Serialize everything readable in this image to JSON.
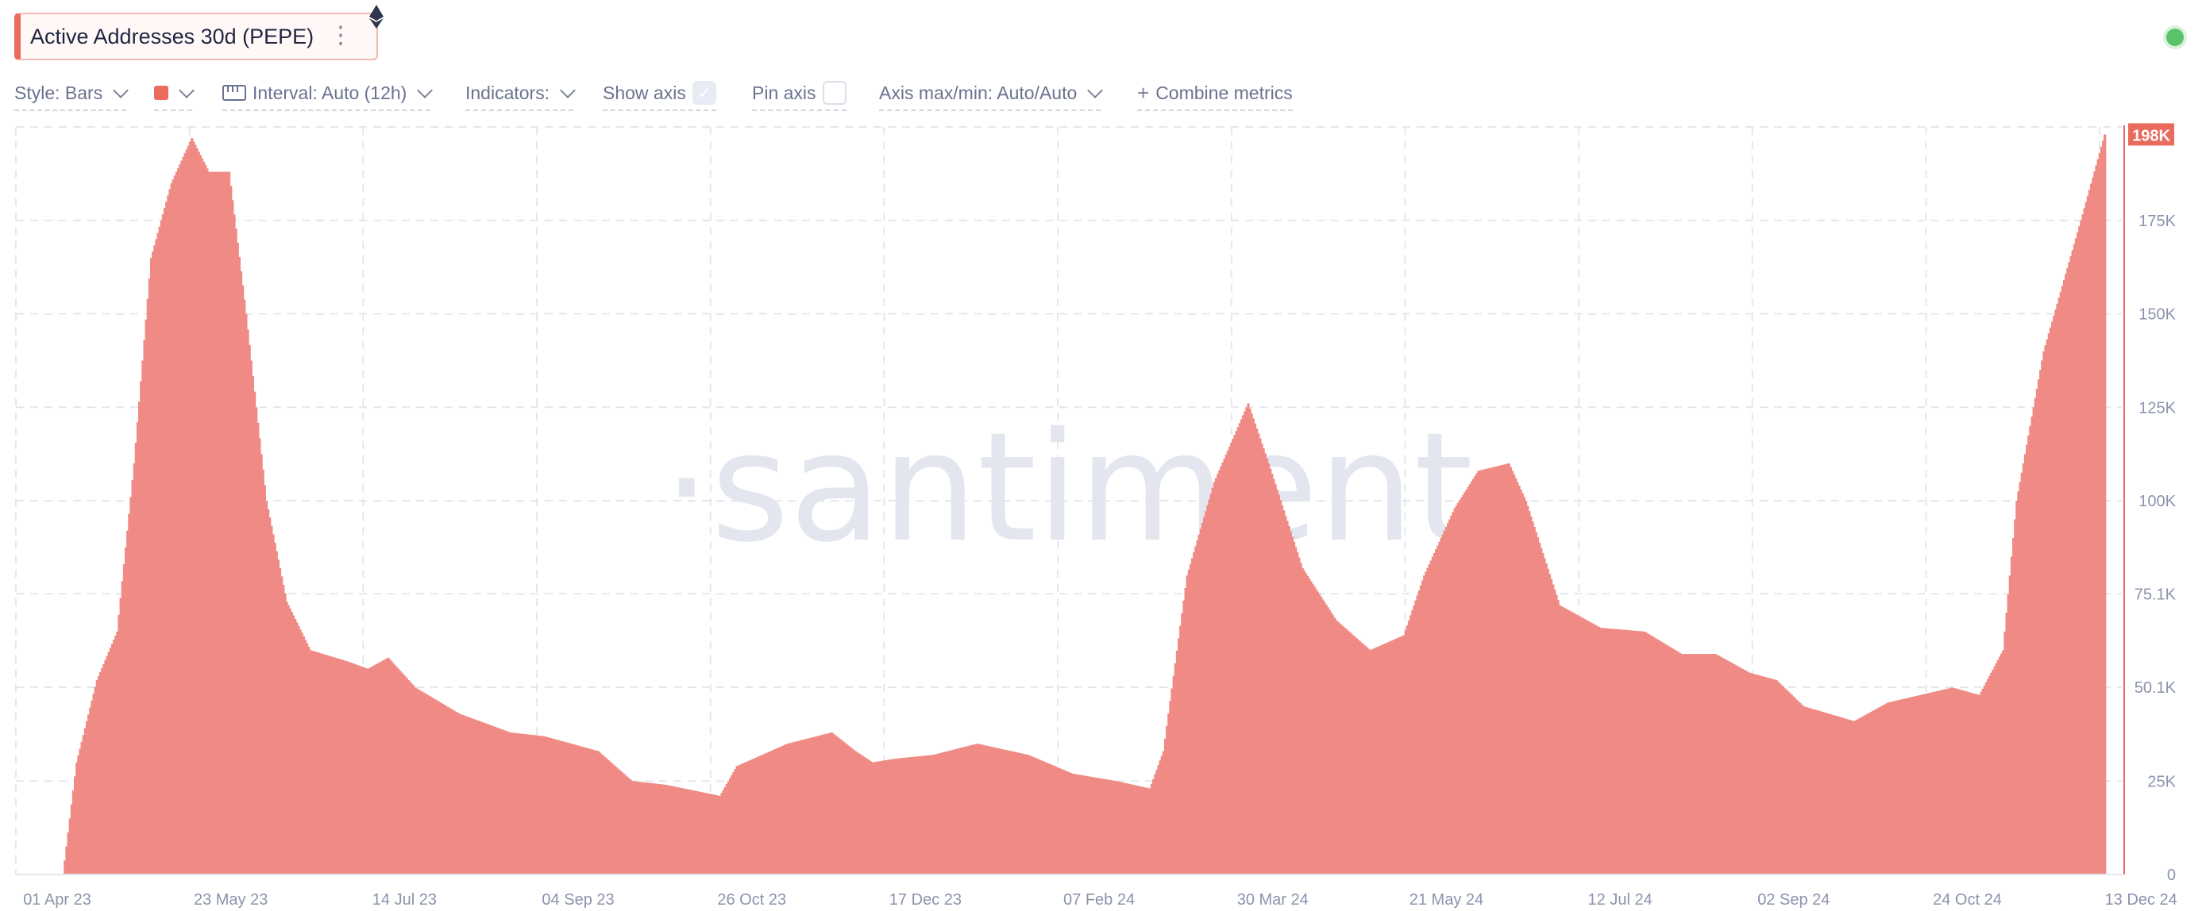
{
  "header": {
    "metric_title": "Active Addresses 30d (PEPE)",
    "menu_icon": "⋮",
    "chain_icon": "ethereum-icon"
  },
  "toolbar": {
    "style": "Style: Bars",
    "interval": "Interval: Auto (12h)",
    "indicators": "Indicators:",
    "show_axis": "Show axis",
    "show_axis_checked": true,
    "pin_axis": "Pin axis",
    "pin_axis_checked": false,
    "axis_maxmin": "Axis max/min: Auto/Auto",
    "combine_plus": "+",
    "combine": "Combine metrics"
  },
  "status": {
    "color": "#5ac26a"
  },
  "chart_data": {
    "type": "bar",
    "watermark": "·santiment·",
    "series_color": "#f08a84",
    "axis_color": "#ea6a5e",
    "current_value_label": "198K",
    "y_ticks": [
      {
        "value": 0,
        "label": "0"
      },
      {
        "value": 25000,
        "label": "25K"
      },
      {
        "value": 50100,
        "label": "50.1K"
      },
      {
        "value": 75100,
        "label": "75.1K"
      },
      {
        "value": 100000,
        "label": "100K"
      },
      {
        "value": 125000,
        "label": "125K"
      },
      {
        "value": 150000,
        "label": "150K"
      },
      {
        "value": 175000,
        "label": "175K"
      }
    ],
    "x_ticks": [
      "01 Apr 23",
      "23 May 23",
      "14 Jul 23",
      "04 Sep 23",
      "26 Oct 23",
      "17 Dec 23",
      "07 Feb 24",
      "30 Mar 24",
      "21 May 24",
      "12 Jul 24",
      "02 Sep 24",
      "24 Oct 24",
      "13 Dec 24"
    ],
    "x_start": "2023-04-01",
    "x_end": "2024-12-13",
    "ylim": [
      0,
      200000
    ],
    "grid": true,
    "points": [
      [
        "2023-04-01",
        0
      ],
      [
        "2023-04-15",
        0
      ],
      [
        "2023-04-19",
        30000
      ],
      [
        "2023-04-25",
        52000
      ],
      [
        "2023-05-01",
        65000
      ],
      [
        "2023-05-06",
        110000
      ],
      [
        "2023-05-11",
        165000
      ],
      [
        "2023-05-17",
        185000
      ],
      [
        "2023-05-23",
        197000
      ],
      [
        "2023-05-28",
        188000
      ],
      [
        "2023-06-03",
        188000
      ],
      [
        "2023-06-08",
        150000
      ],
      [
        "2023-06-14",
        100000
      ],
      [
        "2023-06-20",
        73000
      ],
      [
        "2023-06-27",
        60000
      ],
      [
        "2023-07-08",
        57000
      ],
      [
        "2023-07-14",
        55000
      ],
      [
        "2023-07-20",
        58000
      ],
      [
        "2023-07-28",
        50000
      ],
      [
        "2023-08-10",
        43000
      ],
      [
        "2023-08-25",
        38000
      ],
      [
        "2023-09-04",
        37000
      ],
      [
        "2023-09-20",
        33000
      ],
      [
        "2023-09-30",
        25000
      ],
      [
        "2023-10-10",
        24000
      ],
      [
        "2023-10-26",
        21000
      ],
      [
        "2023-10-31",
        29000
      ],
      [
        "2023-11-15",
        35000
      ],
      [
        "2023-11-28",
        38000
      ],
      [
        "2023-12-05",
        33000
      ],
      [
        "2023-12-10",
        30000
      ],
      [
        "2023-12-17",
        31000
      ],
      [
        "2023-12-28",
        32000
      ],
      [
        "2024-01-10",
        35000
      ],
      [
        "2024-01-25",
        32000
      ],
      [
        "2024-02-07",
        27000
      ],
      [
        "2024-02-20",
        25000
      ],
      [
        "2024-03-01",
        23000
      ],
      [
        "2024-03-05",
        33000
      ],
      [
        "2024-03-12",
        80000
      ],
      [
        "2024-03-20",
        105000
      ],
      [
        "2024-03-30",
        126000
      ],
      [
        "2024-04-05",
        110000
      ],
      [
        "2024-04-15",
        82000
      ],
      [
        "2024-04-25",
        68000
      ],
      [
        "2024-05-05",
        60000
      ],
      [
        "2024-05-15",
        64000
      ],
      [
        "2024-05-21",
        80000
      ],
      [
        "2024-05-30",
        98000
      ],
      [
        "2024-06-06",
        108000
      ],
      [
        "2024-06-15",
        110000
      ],
      [
        "2024-06-20",
        100000
      ],
      [
        "2024-06-30",
        72000
      ],
      [
        "2024-07-12",
        66000
      ],
      [
        "2024-07-25",
        65000
      ],
      [
        "2024-08-05",
        59000
      ],
      [
        "2024-08-15",
        59000
      ],
      [
        "2024-08-25",
        54000
      ],
      [
        "2024-09-02",
        52000
      ],
      [
        "2024-09-10",
        45000
      ],
      [
        "2024-09-25",
        41000
      ],
      [
        "2024-10-05",
        46000
      ],
      [
        "2024-10-24",
        50000
      ],
      [
        "2024-11-01",
        48000
      ],
      [
        "2024-11-08",
        60000
      ],
      [
        "2024-11-12",
        100000
      ],
      [
        "2024-11-20",
        140000
      ],
      [
        "2024-12-01",
        175000
      ],
      [
        "2024-12-08",
        198000
      ]
    ]
  }
}
